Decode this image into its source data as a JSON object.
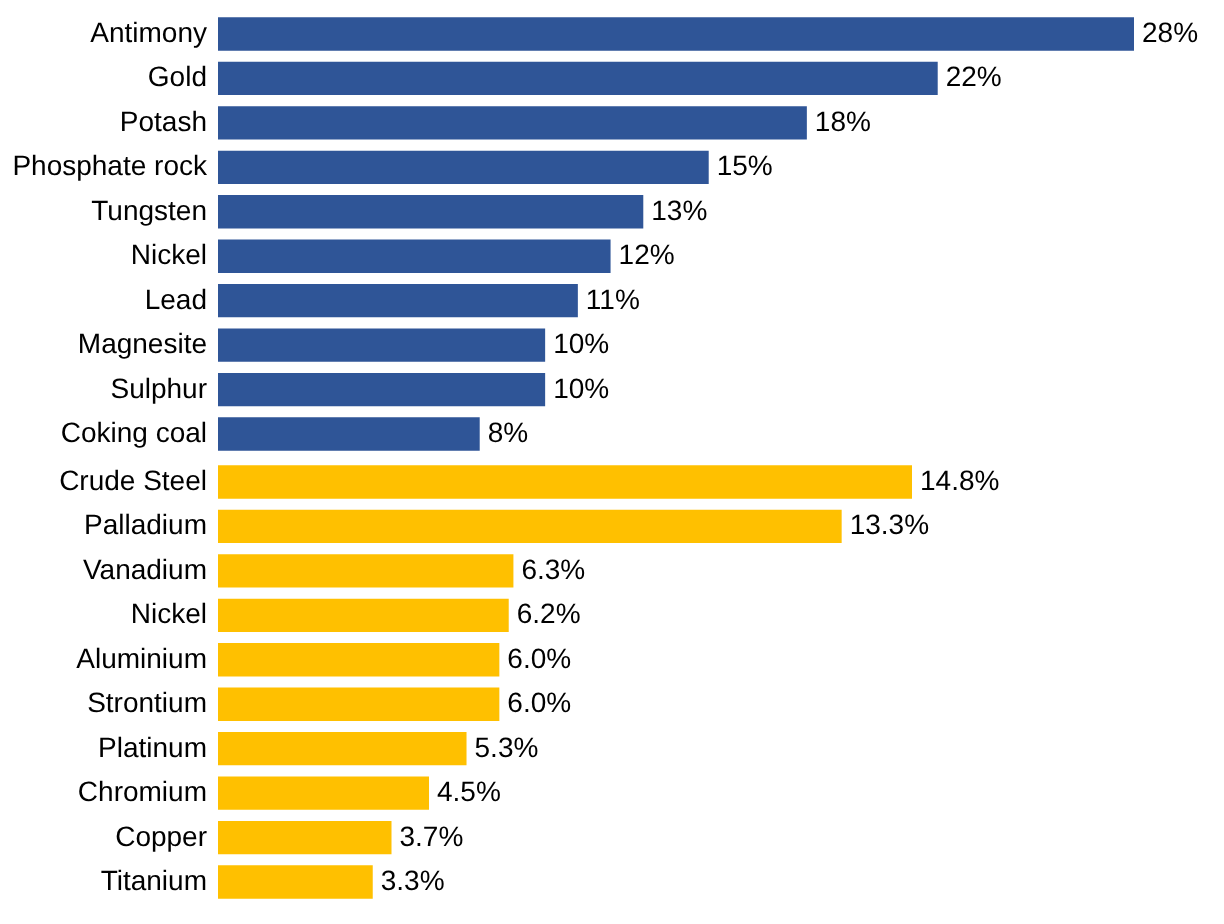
{
  "chart_data": [
    {
      "type": "bar",
      "orientation": "horizontal",
      "data_labels": true,
      "categories": [
        "Antimony",
        "Gold",
        "Potash",
        "Phosphate rock",
        "Tungsten",
        "Nickel",
        "Lead",
        "Magnesite",
        "Sulphur",
        "Coking coal"
      ],
      "series": [
        {
          "color": "#2f5597",
          "values": [
            28,
            22,
            18,
            15,
            13,
            12,
            11,
            10,
            10,
            8
          ],
          "value_labels": [
            "28%",
            "22%",
            "18%",
            "15%",
            "13%",
            "12%",
            "11%",
            "10%",
            "10%",
            "8%"
          ]
        }
      ]
    },
    {
      "type": "bar",
      "orientation": "horizontal",
      "data_labels": true,
      "categories": [
        "Crude Steel",
        "Palladium",
        "Vanadium",
        "Nickel",
        "Aluminium",
        "Strontium",
        "Platinum",
        "Chromium",
        "Copper",
        "Titanium"
      ],
      "series": [
        {
          "color": "#ffc000",
          "values": [
            14.8,
            13.3,
            6.3,
            6.2,
            6.0,
            6.0,
            5.3,
            4.5,
            3.7,
            3.3
          ],
          "value_labels": [
            "14.8%",
            "13.3%",
            "6.3%",
            "6.2%",
            "6.0%",
            "6.0%",
            "5.3%",
            "4.5%",
            "3.7%",
            "3.3%"
          ]
        }
      ]
    }
  ]
}
